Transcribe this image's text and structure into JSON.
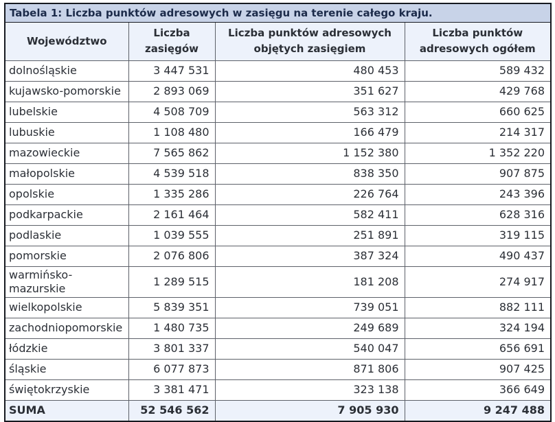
{
  "colors": {
    "page_background": "#ffffff",
    "title_bar_background": "#c8d3e8",
    "title_text": "#1c2b4a",
    "header_background": "#edf2fb",
    "suma_row_background": "#edf2fb",
    "body_text": "#2b2f36",
    "outer_border": "#16191f",
    "inner_border": "#5c6068"
  },
  "table": {
    "title": "Tabela 1: Liczba punktów adresowych w zasięgu na terenie całego kraju.",
    "columns": [
      {
        "label": "Województwo"
      },
      {
        "label": "Liczba zasięgów"
      },
      {
        "label": "Liczba punktów adresowych objętych zasięgiem"
      },
      {
        "label": "Liczba punktów adresowych ogółem"
      }
    ],
    "rows": [
      {
        "wojewodztwo": "dolnośląskie",
        "zasiegi": "3 447 531",
        "objete": "480 453",
        "ogolem": "589 432"
      },
      {
        "wojewodztwo": "kujawsko-pomorskie",
        "zasiegi": "2 893 069",
        "objete": "351 627",
        "ogolem": "429 768"
      },
      {
        "wojewodztwo": "lubelskie",
        "zasiegi": "4 508 709",
        "objete": "563 312",
        "ogolem": "660 625"
      },
      {
        "wojewodztwo": "lubuskie",
        "zasiegi": "1 108 480",
        "objete": "166 479",
        "ogolem": "214 317"
      },
      {
        "wojewodztwo": "mazowieckie",
        "zasiegi": "7 565 862",
        "objete": "1 152 380",
        "ogolem": "1 352 220"
      },
      {
        "wojewodztwo": "małopolskie",
        "zasiegi": "4 539 518",
        "objete": "838 350",
        "ogolem": "907 875"
      },
      {
        "wojewodztwo": "opolskie",
        "zasiegi": "1 335 286",
        "objete": "226 764",
        "ogolem": "243 396"
      },
      {
        "wojewodztwo": "podkarpackie",
        "zasiegi": "2 161 464",
        "objete": "582 411",
        "ogolem": "628 316"
      },
      {
        "wojewodztwo": "podlaskie",
        "zasiegi": "1 039 555",
        "objete": "251 891",
        "ogolem": "319 115"
      },
      {
        "wojewodztwo": "pomorskie",
        "zasiegi": "2 076 806",
        "objete": "387 324",
        "ogolem": "490 437"
      },
      {
        "wojewodztwo": [
          "warmińsko-",
          "mazurskie"
        ],
        "zasiegi": "1 289 515",
        "objete": "181 208",
        "ogolem": "274 917"
      },
      {
        "wojewodztwo": "wielkopolskie",
        "zasiegi": "5 839 351",
        "objete": "739 051",
        "ogolem": "882 111"
      },
      {
        "wojewodztwo": "zachodniopomorskie",
        "zasiegi": "1 480 735",
        "objete": "249 689",
        "ogolem": "324 194"
      },
      {
        "wojewodztwo": "łódzkie",
        "zasiegi": "3 801 337",
        "objete": "540 047",
        "ogolem": "656 691"
      },
      {
        "wojewodztwo": "śląskie",
        "zasiegi": "6 077 873",
        "objete": "871 806",
        "ogolem": "907 425"
      },
      {
        "wojewodztwo": "świętokrzyskie",
        "zasiegi": "3 381 471",
        "objete": "323 138",
        "ogolem": "366 649"
      }
    ],
    "suma": {
      "label": "SUMA",
      "zasiegi": "52 546 562",
      "objete": "7 905 930",
      "ogolem": "9 247 488"
    }
  }
}
